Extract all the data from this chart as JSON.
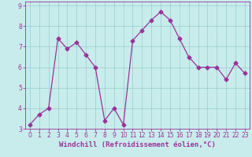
{
  "x": [
    0,
    1,
    2,
    3,
    4,
    5,
    6,
    7,
    8,
    9,
    10,
    11,
    12,
    13,
    14,
    15,
    16,
    17,
    18,
    19,
    20,
    21,
    22,
    23
  ],
  "y": [
    3.2,
    3.7,
    4.0,
    7.4,
    6.9,
    7.2,
    6.6,
    6.0,
    3.4,
    4.0,
    3.2,
    7.3,
    7.8,
    8.3,
    8.7,
    8.3,
    7.4,
    6.5,
    6.0,
    6.0,
    6.0,
    5.4,
    6.2,
    5.7
  ],
  "line_color": "#993399",
  "marker": "D",
  "marker_size": 2.5,
  "bg_color": "#c8ecec",
  "plot_bg_color": "#c8ecec",
  "grid_color": "#99cccc",
  "xlabel": "Windchill (Refroidissement éolien,°C)",
  "ylim": [
    3.0,
    9.2
  ],
  "xlim": [
    -0.5,
    23.5
  ],
  "yticks": [
    3,
    4,
    5,
    6,
    7,
    8,
    9
  ],
  "xticks": [
    0,
    1,
    2,
    3,
    4,
    5,
    6,
    7,
    8,
    9,
    10,
    11,
    12,
    13,
    14,
    15,
    16,
    17,
    18,
    19,
    20,
    21,
    22,
    23
  ],
  "tick_label_size": 5.5,
  "tick_color": "#993399",
  "spine_color": "#993399",
  "xlabel_color": "#993399",
  "xlabel_fontsize": 6.5
}
